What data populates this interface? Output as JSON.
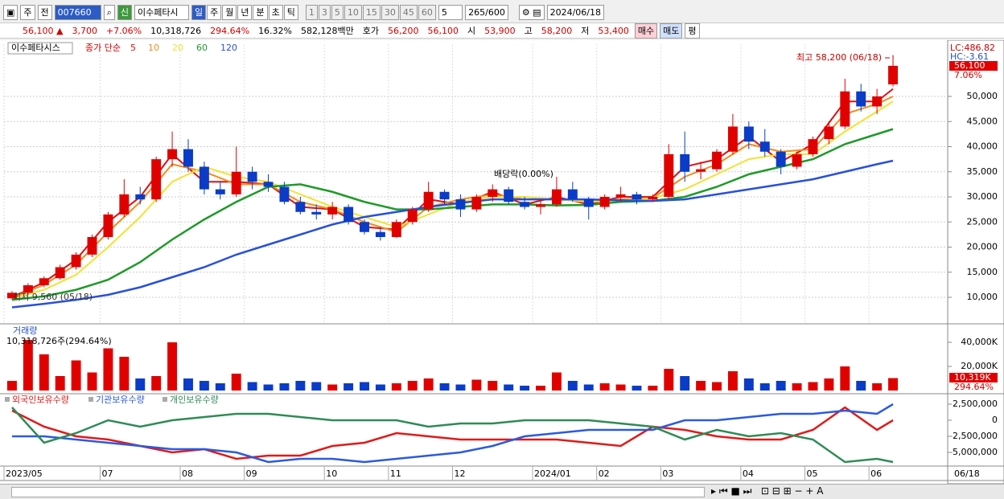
{
  "toolbar": {
    "market": "주",
    "prev": "전",
    "code": "007660",
    "badge": "신",
    "name": "이수페타시",
    "periods": [
      "일",
      "주",
      "월",
      "년",
      "분",
      "초",
      "틱"
    ],
    "intervals": [
      "1",
      "3",
      "5",
      "10",
      "15",
      "30",
      "45",
      "60"
    ],
    "interval_value": "5",
    "count": "265/600",
    "date": "2024/06/18"
  },
  "quote": {
    "price": "56,100 ▲",
    "change": "3,700",
    "change_pct": "+7.06%",
    "volume": "10,318,726",
    "volume_pct": "294.64%",
    "turnover": "16.32%",
    "amount": "582,128백만",
    "ask_label": "호가",
    "ask": "56,200",
    "bid": "56,100",
    "open_label": "시",
    "open": "53,900",
    "high_label": "고",
    "high": "58,200",
    "low_label": "저",
    "low": "53,400",
    "buy": "매수",
    "sell": "매도",
    "avg": "평"
  },
  "chart_data": [
    {
      "type": "candlestick",
      "title": "이수페타시스",
      "legend_prefix": "종가 단순",
      "up_color": "#e00000",
      "down_color": "#0a3cc8",
      "grid": true,
      "ohlc": [
        [
          9800,
          11200,
          9560,
          10900
        ],
        [
          10900,
          12800,
          10500,
          12400
        ],
        [
          12400,
          14200,
          12000,
          13800
        ],
        [
          13800,
          16500,
          13500,
          16000
        ],
        [
          16000,
          19000,
          15500,
          18500
        ],
        [
          18500,
          22500,
          18000,
          22000
        ],
        [
          22000,
          27000,
          21500,
          26500
        ],
        [
          26500,
          33500,
          26000,
          30500
        ],
        [
          30500,
          32000,
          28500,
          29500
        ],
        [
          29500,
          38000,
          29000,
          37500
        ],
        [
          37500,
          43000,
          36000,
          39500
        ],
        [
          39500,
          41500,
          35000,
          36000
        ],
        [
          36000,
          37000,
          30500,
          31500
        ],
        [
          31500,
          33000,
          29500,
          30500
        ],
        [
          30500,
          40000,
          30000,
          35000
        ],
        [
          35000,
          36000,
          31500,
          33000
        ],
        [
          33000,
          34500,
          31000,
          32000
        ],
        [
          32000,
          33000,
          28500,
          29000
        ],
        [
          29000,
          30000,
          26500,
          27000
        ],
        [
          27000,
          28500,
          25500,
          26500
        ],
        [
          26500,
          29000,
          25500,
          28000
        ],
        [
          28000,
          28500,
          24500,
          25000
        ],
        [
          25000,
          25500,
          22500,
          23000
        ],
        [
          23000,
          24000,
          21300,
          22000
        ],
        [
          22000,
          25500,
          21800,
          25000
        ],
        [
          25000,
          28000,
          24500,
          27500
        ],
        [
          27500,
          33000,
          27000,
          31000
        ],
        [
          31000,
          31500,
          28500,
          29500
        ],
        [
          29500,
          30500,
          26000,
          27500
        ],
        [
          27500,
          30500,
          27000,
          30000
        ],
        [
          30000,
          32500,
          29000,
          31500
        ],
        [
          31500,
          32000,
          28500,
          29000
        ],
        [
          29000,
          30000,
          27500,
          28000
        ],
        [
          28000,
          29500,
          26500,
          28500
        ],
        [
          28500,
          34000,
          28000,
          31500
        ],
        [
          31500,
          33000,
          29000,
          29500
        ],
        [
          29500,
          30000,
          25500,
          28000
        ],
        [
          28000,
          30500,
          27500,
          30000
        ],
        [
          30000,
          32000,
          29000,
          30500
        ],
        [
          30500,
          31000,
          28500,
          29500
        ],
        [
          29500,
          30500,
          29000,
          30000
        ],
        [
          30000,
          40500,
          29500,
          38500
        ],
        [
          38500,
          43000,
          33000,
          35000
        ],
        [
          35000,
          37000,
          33500,
          35500
        ],
        [
          35500,
          39500,
          35000,
          39000
        ],
        [
          39000,
          46500,
          38500,
          44000
        ],
        [
          44000,
          45000,
          39500,
          41000
        ],
        [
          41000,
          43500,
          38000,
          39000
        ],
        [
          39000,
          39500,
          34500,
          36000
        ],
        [
          36000,
          39000,
          35500,
          38500
        ],
        [
          38500,
          42000,
          38000,
          41500
        ],
        [
          41500,
          45000,
          40500,
          44000
        ],
        [
          44000,
          53500,
          43500,
          51000
        ],
        [
          51000,
          52500,
          47000,
          48000
        ],
        [
          48000,
          51500,
          46500,
          50000
        ],
        [
          52400,
          58200,
          52000,
          56100
        ]
      ],
      "ma_x": [
        0,
        2,
        4,
        6,
        8,
        10,
        12,
        14,
        16,
        18,
        20,
        22,
        24,
        26,
        28,
        30,
        32,
        34,
        36,
        38,
        40,
        42,
        44,
        46,
        48,
        50,
        52,
        54,
        55
      ],
      "series": [
        {
          "name": "5",
          "color": "#e01010",
          "values": [
            10000,
            13000,
            17500,
            25000,
            30000,
            38500,
            33000,
            33000,
            32500,
            28000,
            27500,
            24000,
            23500,
            29500,
            28500,
            31000,
            28500,
            30000,
            28500,
            30000,
            30000,
            36000,
            37500,
            42000,
            37000,
            40500,
            49000,
            49000,
            51500
          ]
        },
        {
          "name": "10",
          "color": "#f08c1e",
          "values": [
            9900,
            12500,
            16500,
            23000,
            29000,
            36500,
            35000,
            32500,
            32500,
            29000,
            27500,
            25000,
            23000,
            28000,
            29500,
            30500,
            29500,
            29500,
            29000,
            29500,
            29800,
            34000,
            36500,
            40500,
            39000,
            39500,
            46500,
            48500,
            50000
          ]
        },
        {
          "name": "20",
          "color": "#f2e230",
          "values": [
            9800,
            11500,
            14500,
            20000,
            26000,
            33000,
            36000,
            34000,
            33000,
            30500,
            28000,
            26000,
            24000,
            26500,
            29000,
            30000,
            30000,
            29500,
            29000,
            29300,
            29700,
            31500,
            34500,
            37500,
            38500,
            38500,
            43000,
            47000,
            49000
          ]
        },
        {
          "name": "60",
          "color": "#1e9a28",
          "values": [
            9500,
            10200,
            11500,
            13500,
            17000,
            21500,
            25500,
            29000,
            32000,
            32500,
            31000,
            29000,
            27500,
            27500,
            28000,
            28500,
            28500,
            28300,
            28400,
            29000,
            29200,
            30000,
            32000,
            34500,
            36000,
            37500,
            40500,
            42500,
            43500
          ]
        },
        {
          "name": "120",
          "color": "#2850dc",
          "values": [
            8000,
            8700,
            9500,
            10500,
            12000,
            14000,
            16000,
            18500,
            20500,
            22500,
            24500,
            26000,
            27000,
            28000,
            28800,
            29500,
            29500,
            29500,
            29500,
            29300,
            29200,
            29500,
            30500,
            31500,
            32500,
            33500,
            35000,
            36500,
            37200
          ]
        }
      ],
      "ylim": [
        4880,
        60400
      ],
      "yticks": [
        {
          "value": 10000,
          "label": "10,000"
        },
        {
          "value": 15000,
          "label": "15,000"
        },
        {
          "value": 20000,
          "label": "20,000"
        },
        {
          "value": 25000,
          "label": "25,000"
        },
        {
          "value": 30000,
          "label": "30,000"
        },
        {
          "value": 35000,
          "label": "35,000"
        },
        {
          "value": 40000,
          "label": "40,000"
        },
        {
          "value": 45000,
          "label": "45,000"
        },
        {
          "value": 50000,
          "label": "50,000"
        }
      ],
      "annotations": {
        "high": "최고 58,200 (06/18)",
        "low": "최저 9,560 (05/18)",
        "dividend": "배당락(0.00%)"
      },
      "right_labels": {
        "lc": "LC:486.82",
        "hc": "HC:-3.61",
        "last": "56,100",
        "pct": "7.06%"
      }
    },
    {
      "type": "bar",
      "title": "거래량",
      "subtitle": "10,318,726주(294.64%)",
      "values": [
        8000,
        42000,
        30000,
        12000,
        25000,
        15000,
        35000,
        28000,
        10000,
        12000,
        40000,
        10000,
        8000,
        6000,
        14000,
        7000,
        5000,
        6000,
        8000,
        7000,
        5000,
        6000,
        7000,
        5000,
        6000,
        8000,
        10000,
        6000,
        5000,
        9000,
        8000,
        5000,
        4000,
        4000,
        15000,
        8000,
        5000,
        6000,
        5000,
        4000,
        4000,
        18000,
        12000,
        8000,
        7000,
        16000,
        10000,
        6000,
        8000,
        6000,
        7000,
        10000,
        20000,
        8000,
        6000,
        10319
      ],
      "ylim": [
        0,
        52000
      ],
      "yticks": [
        {
          "value": 20000,
          "label": "20,000K"
        },
        {
          "value": 40000,
          "label": "40,000K"
        }
      ],
      "right_labels": {
        "last": "10,319K",
        "pct": "294.64%"
      }
    },
    {
      "type": "line",
      "categories": [
        "2023/05",
        null,
        null,
        null,
        null,
        null,
        "07",
        null,
        null,
        null,
        null,
        "08",
        null,
        null,
        null,
        "09",
        null,
        null,
        null,
        null,
        "10",
        null,
        null,
        null,
        "11",
        null,
        null,
        null,
        "12",
        null,
        null,
        null,
        null,
        "2024/01",
        null,
        null,
        null,
        "02",
        null,
        null,
        null,
        "03",
        null,
        null,
        null,
        null,
        "04",
        null,
        null,
        null,
        "05",
        null,
        null,
        null,
        "06",
        null
      ],
      "x_end_label": "06/18",
      "x": [
        0,
        2,
        4,
        6,
        8,
        10,
        12,
        14,
        16,
        18,
        20,
        22,
        24,
        26,
        28,
        30,
        32,
        34,
        36,
        38,
        40,
        42,
        44,
        46,
        48,
        50,
        52,
        54,
        55
      ],
      "series": [
        {
          "name": "외국인보유수량",
          "color": "#e01a1a",
          "values": [
            1500000,
            -1000000,
            -2500000,
            -3000000,
            -4000000,
            -5000000,
            -4500000,
            -6000000,
            -5500000,
            -5500000,
            -4000000,
            -3500000,
            -2000000,
            -2500000,
            -3000000,
            -3000000,
            -3000000,
            -3000000,
            -3500000,
            -4000000,
            -1000000,
            -1500000,
            -2500000,
            -3000000,
            -3000000,
            -1500000,
            2000000,
            -1500000,
            0
          ]
        },
        {
          "name": "기관보유수량",
          "color": "#2a5ae0",
          "values": [
            -2500000,
            -2500000,
            -3000000,
            -3500000,
            -4000000,
            -4500000,
            -4500000,
            -5000000,
            -6500000,
            -6000000,
            -6000000,
            -6500000,
            -6000000,
            -5500000,
            -5000000,
            -4000000,
            -2500000,
            -2000000,
            -1500000,
            -1500000,
            -1500000,
            0,
            0,
            500000,
            1000000,
            1000000,
            1500000,
            1000000,
            2500000
          ]
        },
        {
          "name": "개인보유수량",
          "color": "#2e8b57",
          "values": [
            2000000,
            -3500000,
            -2000000,
            0,
            -1000000,
            0,
            500000,
            1000000,
            1000000,
            500000,
            0,
            0,
            0,
            -1000000,
            -500000,
            -500000,
            0,
            0,
            0,
            -500000,
            -1000000,
            -3000000,
            -1500000,
            -2500000,
            -2000000,
            -3000000,
            -6500000,
            -6000000,
            -6500000
          ]
        }
      ],
      "ylim": [
        -6875000,
        3750000
      ],
      "yticks": [
        {
          "value": 2500000,
          "label": "2,500,000"
        },
        0,
        {
          "value": -2500000,
          "label": "-2,500,000"
        },
        {
          "value": -5000000,
          "label": "-5,000,000"
        }
      ]
    }
  ]
}
